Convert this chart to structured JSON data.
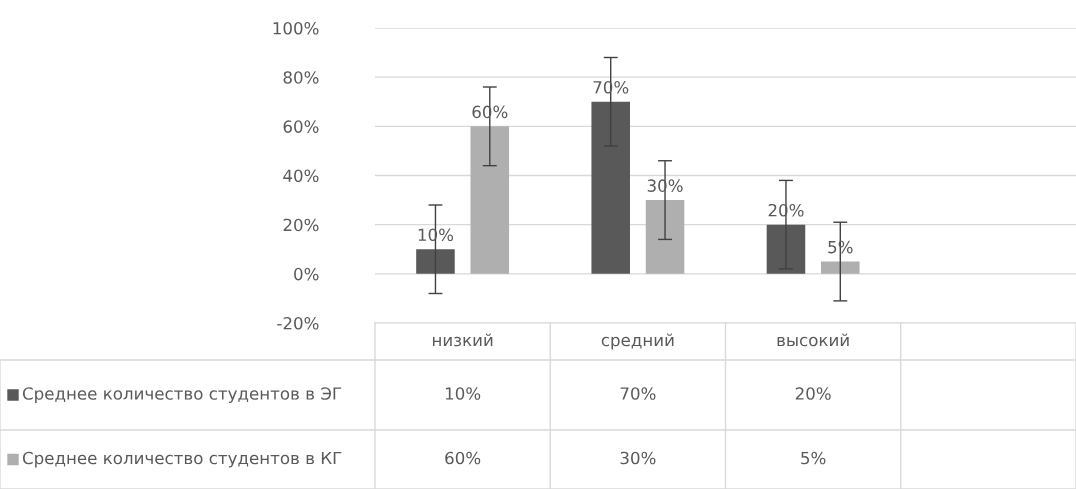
{
  "chart_data": {
    "type": "bar",
    "categories": [
      "низкий",
      "средний",
      "высокий",
      null
    ],
    "series": [
      {
        "name": "Среднее количество студентов в ЭГ",
        "color": "#595959",
        "values": [
          10,
          70,
          20,
          null
        ],
        "errors": [
          18,
          18,
          18,
          null
        ],
        "value_labels": [
          "10%",
          "70%",
          "20%",
          null
        ]
      },
      {
        "name": "Среднее количество студентов в КГ",
        "color": "#afafaf",
        "values": [
          60,
          30,
          5,
          null
        ],
        "errors": [
          16,
          16,
          16,
          null
        ],
        "value_labels": [
          "60%",
          "30%",
          "5%",
          null
        ]
      }
    ],
    "ylim": [
      -20,
      100
    ],
    "yticks": [
      {
        "value": -20,
        "label": "-20%"
      },
      {
        "value": 0,
        "label": "0%"
      },
      {
        "value": 20,
        "label": "20%"
      },
      {
        "value": 40,
        "label": "40%"
      },
      {
        "value": 60,
        "label": "60%"
      },
      {
        "value": 80,
        "label": "80%"
      },
      {
        "value": 100,
        "label": "100%"
      }
    ],
    "grid": "y",
    "legend": "bottom left"
  }
}
